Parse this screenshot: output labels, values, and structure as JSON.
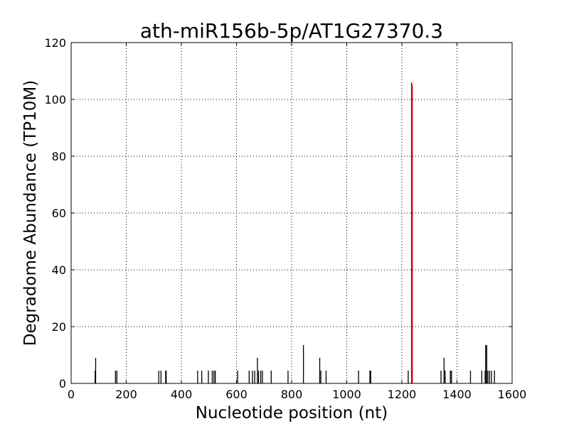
{
  "chart_data": {
    "type": "bar",
    "title": "ath-miR156b-5p/AT1G27370.3",
    "xlabel": "Nucleotide position (nt)",
    "ylabel": "Degradome Abundance (TP10M)",
    "xlim": [
      0,
      1600
    ],
    "ylim": [
      0,
      120
    ],
    "xticks": [
      0,
      200,
      400,
      600,
      800,
      1000,
      1200,
      1400,
      1600
    ],
    "yticks": [
      0,
      20,
      40,
      60,
      80,
      100,
      120
    ],
    "grid": true,
    "series": [
      {
        "color": "#000000",
        "points": [
          [
            87,
            4.5
          ],
          [
            89,
            9
          ],
          [
            161,
            4.5
          ],
          [
            166,
            4.5
          ],
          [
            318,
            4.5
          ],
          [
            326,
            4.5
          ],
          [
            343,
            4.5
          ],
          [
            345,
            4.5
          ],
          [
            459,
            4.5
          ],
          [
            474,
            4.5
          ],
          [
            498,
            4.5
          ],
          [
            512,
            4.5
          ],
          [
            518,
            4.5
          ],
          [
            523,
            4.5
          ],
          [
            604,
            4.5
          ],
          [
            646,
            4.5
          ],
          [
            658,
            4.5
          ],
          [
            666,
            4.5
          ],
          [
            676,
            9
          ],
          [
            680,
            4.5
          ],
          [
            688,
            4.5
          ],
          [
            694,
            4.5
          ],
          [
            726,
            4.5
          ],
          [
            787,
            4.5
          ],
          [
            843,
            13.5
          ],
          [
            902,
            9
          ],
          [
            906,
            4.5
          ],
          [
            925,
            4.5
          ],
          [
            1043,
            4.5
          ],
          [
            1084,
            4.5
          ],
          [
            1087,
            4.5
          ],
          [
            1223,
            4.5
          ],
          [
            1342,
            4.5
          ],
          [
            1353,
            9
          ],
          [
            1357,
            4.5
          ],
          [
            1376,
            4.5
          ],
          [
            1380,
            4.5
          ],
          [
            1449,
            4.5
          ],
          [
            1490,
            4.5
          ],
          [
            1502,
            4.5
          ],
          [
            1504,
            13.5
          ],
          [
            1508,
            13.5
          ],
          [
            1512,
            4.5
          ],
          [
            1518,
            4.5
          ],
          [
            1525,
            4.5
          ],
          [
            1536,
            4.5
          ]
        ]
      },
      {
        "color": "#cc0000",
        "points": [
          [
            1235,
            106
          ],
          [
            1236,
            105
          ],
          [
            1237,
            105.5
          ],
          [
            1238,
            104.5
          ]
        ]
      }
    ]
  }
}
